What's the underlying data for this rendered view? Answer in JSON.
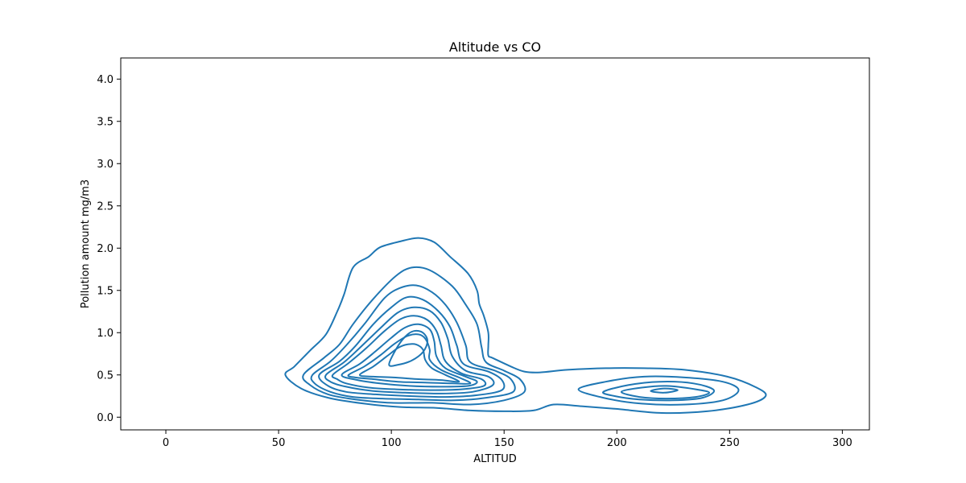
{
  "chart_data": {
    "type": "contour",
    "title": "Altitude vs CO",
    "xlabel": "ALTITUD",
    "ylabel": "Pollution amount mg/m3",
    "xlim": [
      -20,
      312
    ],
    "ylim": [
      -0.15,
      4.25
    ],
    "xticks": [
      0,
      50,
      100,
      150,
      200,
      250,
      300
    ],
    "yticks": [
      0.0,
      0.5,
      1.0,
      1.5,
      2.0,
      2.5,
      3.0,
      3.5,
      4.0
    ],
    "xtick_labels": [
      "0",
      "50",
      "100",
      "150",
      "200",
      "250",
      "300"
    ],
    "ytick_labels": [
      "0.0",
      "0.5",
      "1.0",
      "1.5",
      "2.0",
      "2.5",
      "3.0",
      "3.5",
      "4.0"
    ],
    "line_color": "#1f77b4",
    "grid": false,
    "contours": [
      {
        "level": 1,
        "points": [
          [
            53,
            0.5
          ],
          [
            57,
            0.6
          ],
          [
            64,
            0.79
          ],
          [
            71,
            0.98
          ],
          [
            76,
            1.25
          ],
          [
            79,
            1.45
          ],
          [
            83,
            1.77
          ],
          [
            90,
            1.9
          ],
          [
            95,
            2.01
          ],
          [
            104,
            2.08
          ],
          [
            112,
            2.12
          ],
          [
            119,
            2.07
          ],
          [
            126,
            1.9
          ],
          [
            134,
            1.7
          ],
          [
            138,
            1.5
          ],
          [
            139,
            1.34
          ],
          [
            141,
            1.2
          ],
          [
            143,
            1.0
          ],
          [
            143,
            0.85
          ],
          [
            143,
            0.73
          ],
          [
            145,
            0.7
          ],
          [
            153,
            0.6
          ],
          [
            159,
            0.54
          ],
          [
            166,
            0.53
          ],
          [
            178,
            0.56
          ],
          [
            195,
            0.58
          ],
          [
            212,
            0.58
          ],
          [
            230,
            0.56
          ],
          [
            249,
            0.48
          ],
          [
            262,
            0.35
          ],
          [
            266,
            0.25
          ],
          [
            258,
            0.15
          ],
          [
            240,
            0.07
          ],
          [
            220,
            0.05
          ],
          [
            199,
            0.1
          ],
          [
            184,
            0.13
          ],
          [
            172,
            0.15
          ],
          [
            163,
            0.08
          ],
          [
            150,
            0.07
          ],
          [
            135,
            0.08
          ],
          [
            120,
            0.11
          ],
          [
            104,
            0.12
          ],
          [
            88,
            0.16
          ],
          [
            72,
            0.23
          ],
          [
            60,
            0.34
          ],
          [
            53,
            0.5
          ]
        ]
      },
      {
        "level": 2,
        "points": [
          [
            61,
            0.5
          ],
          [
            70,
            0.7
          ],
          [
            77,
            0.86
          ],
          [
            83,
            1.1
          ],
          [
            92,
            1.4
          ],
          [
            102,
            1.67
          ],
          [
            109,
            1.77
          ],
          [
            117,
            1.74
          ],
          [
            127,
            1.55
          ],
          [
            133,
            1.33
          ],
          [
            138,
            1.1
          ],
          [
            140,
            0.83
          ],
          [
            142,
            0.65
          ],
          [
            150,
            0.55
          ],
          [
            157,
            0.45
          ],
          [
            159,
            0.3
          ],
          [
            150,
            0.2
          ],
          [
            135,
            0.15
          ],
          [
            118,
            0.17
          ],
          [
            100,
            0.17
          ],
          [
            84,
            0.21
          ],
          [
            72,
            0.27
          ],
          [
            64,
            0.38
          ],
          [
            61,
            0.5
          ]
        ]
      },
      {
        "level": 3,
        "points": [
          [
            65,
            0.5
          ],
          [
            73,
            0.66
          ],
          [
            80,
            0.85
          ],
          [
            88,
            1.1
          ],
          [
            97,
            1.41
          ],
          [
            104,
            1.53
          ],
          [
            111,
            1.56
          ],
          [
            118,
            1.48
          ],
          [
            124,
            1.33
          ],
          [
            129,
            1.12
          ],
          [
            133,
            0.85
          ],
          [
            135,
            0.65
          ],
          [
            146,
            0.55
          ],
          [
            153,
            0.45
          ],
          [
            154,
            0.3
          ],
          [
            142,
            0.23
          ],
          [
            128,
            0.2
          ],
          [
            112,
            0.21
          ],
          [
            96,
            0.22
          ],
          [
            83,
            0.24
          ],
          [
            73,
            0.3
          ],
          [
            66,
            0.4
          ],
          [
            65,
            0.5
          ]
        ]
      },
      {
        "level": 4,
        "points": [
          [
            68,
            0.5
          ],
          [
            77,
            0.66
          ],
          [
            84,
            0.84
          ],
          [
            92,
            1.1
          ],
          [
            100,
            1.3
          ],
          [
            107,
            1.42
          ],
          [
            114,
            1.39
          ],
          [
            121,
            1.25
          ],
          [
            126,
            1.07
          ],
          [
            129,
            0.85
          ],
          [
            132,
            0.63
          ],
          [
            143,
            0.54
          ],
          [
            149,
            0.44
          ],
          [
            149,
            0.32
          ],
          [
            138,
            0.26
          ],
          [
            124,
            0.24
          ],
          [
            108,
            0.25
          ],
          [
            93,
            0.27
          ],
          [
            80,
            0.3
          ],
          [
            72,
            0.37
          ],
          [
            68,
            0.5
          ]
        ]
      },
      {
        "level": 5,
        "points": [
          [
            71,
            0.5
          ],
          [
            79,
            0.65
          ],
          [
            86,
            0.82
          ],
          [
            95,
            1.05
          ],
          [
            103,
            1.24
          ],
          [
            110,
            1.3
          ],
          [
            117,
            1.26
          ],
          [
            122,
            1.12
          ],
          [
            125,
            0.93
          ],
          [
            127,
            0.72
          ],
          [
            133,
            0.55
          ],
          [
            143,
            0.48
          ],
          [
            145,
            0.38
          ],
          [
            136,
            0.3
          ],
          [
            122,
            0.28
          ],
          [
            106,
            0.29
          ],
          [
            92,
            0.31
          ],
          [
            80,
            0.36
          ],
          [
            73,
            0.42
          ],
          [
            71,
            0.5
          ]
        ]
      },
      {
        "level": 6,
        "points": [
          [
            74,
            0.5
          ],
          [
            81,
            0.64
          ],
          [
            89,
            0.82
          ],
          [
            97,
            1.02
          ],
          [
            104,
            1.16
          ],
          [
            110,
            1.2
          ],
          [
            116,
            1.15
          ],
          [
            120,
            1.02
          ],
          [
            122,
            0.85
          ],
          [
            124,
            0.66
          ],
          [
            131,
            0.52
          ],
          [
            140,
            0.45
          ],
          [
            141,
            0.37
          ],
          [
            131,
            0.33
          ],
          [
            117,
            0.32
          ],
          [
            102,
            0.33
          ],
          [
            90,
            0.35
          ],
          [
            80,
            0.4
          ],
          [
            76,
            0.45
          ],
          [
            74,
            0.5
          ]
        ]
      },
      {
        "level": 7,
        "points": [
          [
            78,
            0.5
          ],
          [
            86,
            0.63
          ],
          [
            93,
            0.78
          ],
          [
            100,
            0.94
          ],
          [
            106,
            1.06
          ],
          [
            112,
            1.1
          ],
          [
            117,
            1.04
          ],
          [
            119,
            0.9
          ],
          [
            120,
            0.72
          ],
          [
            124,
            0.58
          ],
          [
            133,
            0.48
          ],
          [
            138,
            0.42
          ],
          [
            134,
            0.37
          ],
          [
            122,
            0.36
          ],
          [
            108,
            0.37
          ],
          [
            95,
            0.4
          ],
          [
            85,
            0.44
          ],
          [
            78,
            0.5
          ]
        ]
      },
      {
        "level": 8,
        "points": [
          [
            81,
            0.5
          ],
          [
            88,
            0.6
          ],
          [
            95,
            0.73
          ],
          [
            101,
            0.86
          ],
          [
            107,
            0.96
          ],
          [
            112,
            0.98
          ],
          [
            115,
            0.93
          ],
          [
            117,
            0.8
          ],
          [
            117,
            0.68
          ],
          [
            122,
            0.56
          ],
          [
            130,
            0.47
          ],
          [
            135,
            0.4
          ],
          [
            127,
            0.4
          ],
          [
            115,
            0.41
          ],
          [
            103,
            0.42
          ],
          [
            92,
            0.45
          ],
          [
            84,
            0.47
          ],
          [
            81,
            0.5
          ]
        ]
      },
      {
        "level": 9,
        "points": [
          [
            86,
            0.5
          ],
          [
            92,
            0.6
          ],
          [
            98,
            0.72
          ],
          [
            103,
            0.82
          ],
          [
            107,
            0.86
          ],
          [
            111,
            0.86
          ],
          [
            114,
            0.8
          ],
          [
            115,
            0.68
          ],
          [
            118,
            0.58
          ],
          [
            124,
            0.5
          ],
          [
            130,
            0.42
          ],
          [
            122,
            0.44
          ],
          [
            112,
            0.45
          ],
          [
            101,
            0.47
          ],
          [
            92,
            0.48
          ],
          [
            86,
            0.5
          ]
        ]
      },
      {
        "level": 10,
        "points": [
          [
            99,
            0.62
          ],
          [
            102,
            0.8
          ],
          [
            106,
            0.95
          ],
          [
            110,
            1.02
          ],
          [
            114,
            1.0
          ],
          [
            116,
            0.9
          ],
          [
            114,
            0.77
          ],
          [
            109,
            0.67
          ],
          [
            103,
            0.62
          ],
          [
            99,
            0.62
          ]
        ]
      },
      {
        "level": 11,
        "points": [
          [
            183,
            0.33
          ],
          [
            195,
            0.42
          ],
          [
            212,
            0.48
          ],
          [
            230,
            0.47
          ],
          [
            247,
            0.42
          ],
          [
            254,
            0.32
          ],
          [
            247,
            0.2
          ],
          [
            230,
            0.15
          ],
          [
            211,
            0.16
          ],
          [
            194,
            0.23
          ],
          [
            183,
            0.33
          ]
        ]
      },
      {
        "level": 12,
        "points": [
          [
            194,
            0.3
          ],
          [
            205,
            0.38
          ],
          [
            219,
            0.42
          ],
          [
            234,
            0.4
          ],
          [
            243,
            0.32
          ],
          [
            238,
            0.23
          ],
          [
            225,
            0.2
          ],
          [
            210,
            0.21
          ],
          [
            199,
            0.25
          ],
          [
            194,
            0.3
          ]
        ]
      },
      {
        "level": 13,
        "points": [
          [
            202,
            0.3
          ],
          [
            211,
            0.35
          ],
          [
            222,
            0.37
          ],
          [
            235,
            0.33
          ],
          [
            241,
            0.29
          ],
          [
            235,
            0.24
          ],
          [
            222,
            0.22
          ],
          [
            210,
            0.24
          ],
          [
            202,
            0.3
          ]
        ]
      },
      {
        "level": 14,
        "points": [
          [
            215,
            0.31
          ],
          [
            221,
            0.34
          ],
          [
            227,
            0.32
          ],
          [
            221,
            0.29
          ],
          [
            215,
            0.31
          ]
        ]
      }
    ]
  }
}
